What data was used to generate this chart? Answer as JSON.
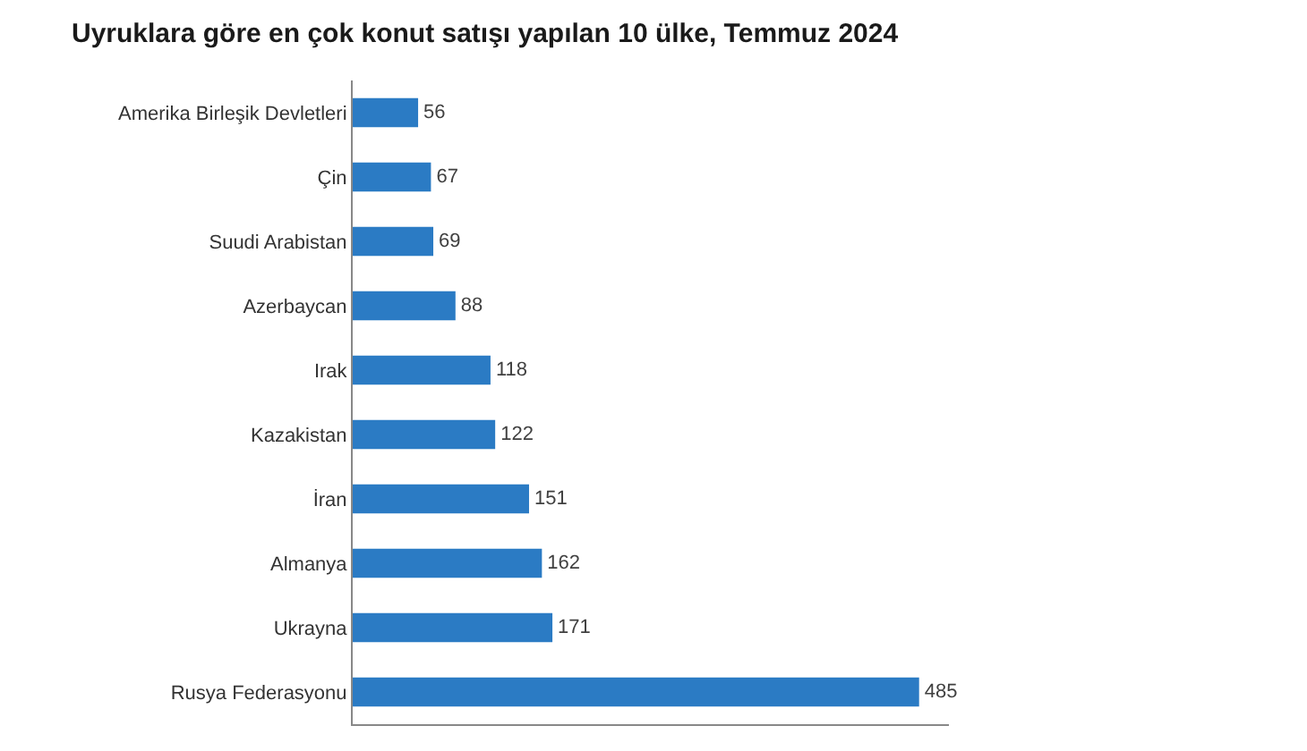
{
  "chart_data": {
    "type": "bar",
    "orientation": "horizontal",
    "title": "Uyruklara göre en çok konut satışı yapılan 10 ülke, Temmuz 2024",
    "categories": [
      "Amerika Birleşik Devletleri",
      "Çin",
      "Suudi Arabistan",
      "Azerbaycan",
      "Irak",
      "Kazakistan",
      "İran",
      "Almanya",
      "Ukrayna",
      "Rusya Federasyonu"
    ],
    "values": [
      56,
      67,
      69,
      88,
      118,
      122,
      151,
      162,
      171,
      485
    ],
    "color": "#2b7bc4",
    "data_labels": true,
    "tick_labels": "y"
  }
}
